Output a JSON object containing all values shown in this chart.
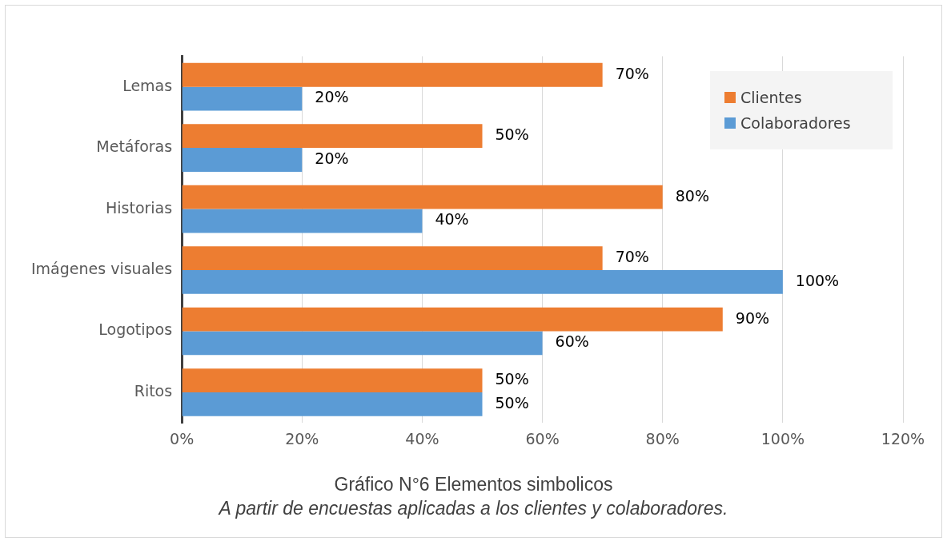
{
  "chart_data": {
    "type": "bar",
    "orientation": "horizontal",
    "title": "Gráfico N°6 Elementos simbolicos",
    "subtitle": "A partir de encuestas aplicadas a los clientes y colaboradores.",
    "categories": [
      "Lemas",
      "Metáforas",
      "Historias",
      "Imágenes visuales",
      "Logotipos",
      "Ritos"
    ],
    "series": [
      {
        "name": "Clientes",
        "color": "#ed7d31",
        "values": [
          70,
          50,
          80,
          70,
          90,
          50
        ],
        "value_labels": [
          "70%",
          "50%",
          "80%",
          "70%",
          "90%",
          "50%"
        ]
      },
      {
        "name": "Colaboradores",
        "color": "#5b9bd5",
        "values": [
          20,
          20,
          40,
          100,
          60,
          50
        ],
        "value_labels": [
          "20%",
          "20%",
          "40%",
          "100%",
          "60%",
          "50%"
        ]
      }
    ],
    "xlim": [
      0,
      120
    ],
    "xticks": [
      {
        "value": 0,
        "label": "0%"
      },
      {
        "value": 20,
        "label": "20%"
      },
      {
        "value": 40,
        "label": "40%"
      },
      {
        "value": 60,
        "label": "60%"
      },
      {
        "value": 80,
        "label": "80%"
      },
      {
        "value": 100,
        "label": "100%"
      },
      {
        "value": 120,
        "label": "120%"
      }
    ],
    "grid": "x",
    "legend": "top right"
  }
}
